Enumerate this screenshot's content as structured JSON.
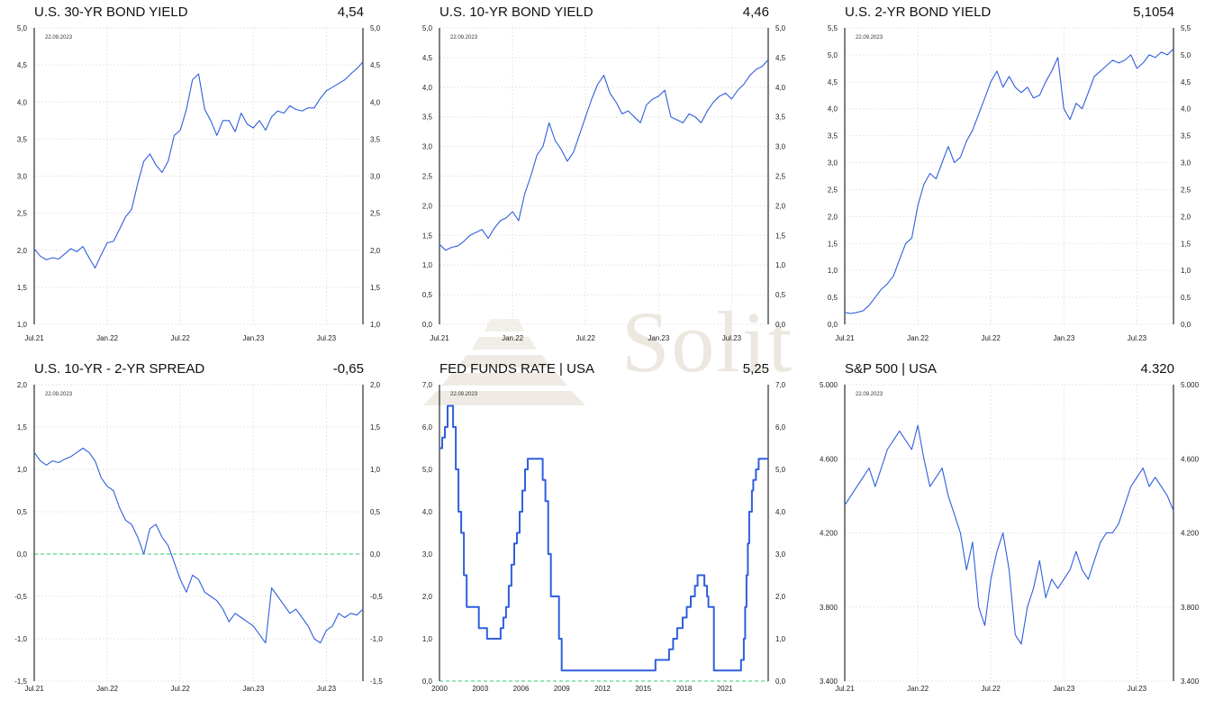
{
  "watermark": {
    "text": "Solit"
  },
  "colors": {
    "line": "#2f5fdc",
    "zero": "#2ecc71",
    "grid": "#e6e6e6",
    "axis": "#000000",
    "watermark": "#ece7df"
  },
  "chart_data": [
    {
      "id": "us30",
      "type": "line",
      "title": "U.S. 30-YR BOND YIELD",
      "last_value": "4,54",
      "date_label": "22.09.2023",
      "ylim": [
        1.0,
        5.0
      ],
      "yticks": [
        "1,0",
        "1,5",
        "2,0",
        "2,5",
        "3,0",
        "3,5",
        "4,0",
        "4,5",
        "5,0"
      ],
      "xlim": [
        0,
        27
      ],
      "xtick_labels": [
        "Jul.21",
        "Jan.22",
        "Jul.22",
        "Jan.23",
        "Jul.23"
      ],
      "xtick_positions": [
        0,
        6,
        12,
        18,
        24
      ],
      "grid": true,
      "zero_line": false,
      "step": false,
      "x": [
        0,
        0.5,
        1,
        1.5,
        2,
        2.5,
        3,
        3.5,
        4,
        4.5,
        5,
        5.5,
        6,
        6.5,
        7,
        7.5,
        8,
        8.5,
        9,
        9.5,
        10,
        10.5,
        11,
        11.5,
        12,
        12.5,
        13,
        13.5,
        14,
        14.5,
        15,
        15.5,
        16,
        16.5,
        17,
        17.5,
        18,
        18.5,
        19,
        19.5,
        20,
        20.5,
        21,
        21.5,
        22,
        22.5,
        23,
        23.5,
        24,
        24.5,
        25,
        25.5,
        26,
        26.5,
        27
      ],
      "y": [
        2.02,
        1.92,
        1.87,
        1.9,
        1.88,
        1.95,
        2.02,
        1.98,
        2.05,
        1.9,
        1.76,
        1.94,
        2.1,
        2.12,
        2.28,
        2.45,
        2.55,
        2.9,
        3.2,
        3.3,
        3.15,
        3.05,
        3.2,
        3.55,
        3.62,
        3.9,
        4.3,
        4.38,
        3.9,
        3.75,
        3.55,
        3.75,
        3.75,
        3.6,
        3.85,
        3.7,
        3.65,
        3.75,
        3.62,
        3.8,
        3.88,
        3.85,
        3.95,
        3.9,
        3.88,
        3.92,
        3.92,
        4.05,
        4.15,
        4.2,
        4.25,
        4.3,
        4.38,
        4.45,
        4.54
      ]
    },
    {
      "id": "us10",
      "type": "line",
      "title": "U.S. 10-YR BOND YIELD",
      "last_value": "4,46",
      "date_label": "22.09.2023",
      "ylim": [
        0.0,
        5.0
      ],
      "yticks": [
        "0,0",
        "0,5",
        "1,0",
        "1,5",
        "2,0",
        "2,5",
        "3,0",
        "3,5",
        "4,0",
        "4,5",
        "5,0"
      ],
      "xlim": [
        0,
        27
      ],
      "xtick_labels": [
        "Jul.21",
        "Jan.22",
        "Jul.22",
        "Jan.23",
        "Jul.23"
      ],
      "xtick_positions": [
        0,
        6,
        12,
        18,
        24
      ],
      "grid": true,
      "zero_line": false,
      "step": false,
      "x": [
        0,
        0.5,
        1,
        1.5,
        2,
        2.5,
        3,
        3.5,
        4,
        4.5,
        5,
        5.5,
        6,
        6.5,
        7,
        7.5,
        8,
        8.5,
        9,
        9.5,
        10,
        10.5,
        11,
        11.5,
        12,
        12.5,
        13,
        13.5,
        14,
        14.5,
        15,
        15.5,
        16,
        16.5,
        17,
        17.5,
        18,
        18.5,
        19,
        19.5,
        20,
        20.5,
        21,
        21.5,
        22,
        22.5,
        23,
        23.5,
        24,
        24.5,
        25,
        25.5,
        26,
        26.5,
        27
      ],
      "y": [
        1.35,
        1.25,
        1.3,
        1.32,
        1.4,
        1.5,
        1.55,
        1.6,
        1.45,
        1.62,
        1.75,
        1.8,
        1.9,
        1.75,
        2.2,
        2.5,
        2.85,
        3.0,
        3.4,
        3.1,
        2.95,
        2.75,
        2.9,
        3.2,
        3.5,
        3.8,
        4.05,
        4.2,
        3.9,
        3.75,
        3.55,
        3.6,
        3.5,
        3.4,
        3.7,
        3.8,
        3.85,
        3.95,
        3.5,
        3.45,
        3.4,
        3.55,
        3.5,
        3.4,
        3.6,
        3.75,
        3.85,
        3.9,
        3.8,
        3.95,
        4.05,
        4.2,
        4.3,
        4.35,
        4.46
      ]
    },
    {
      "id": "us2",
      "type": "line",
      "title": "U.S. 2-YR BOND YIELD",
      "last_value": "5,1054",
      "date_label": "22.09.2023",
      "ylim": [
        0.0,
        5.5
      ],
      "yticks": [
        "0,0",
        "0,5",
        "1,0",
        "1,5",
        "2,0",
        "2,5",
        "3,0",
        "3,5",
        "4,0",
        "4,5",
        "5,0",
        "5,5"
      ],
      "xlim": [
        0,
        27
      ],
      "xtick_labels": [
        "Jul.21",
        "Jan.22",
        "Jul.22",
        "Jan.23",
        "Jul.23"
      ],
      "xtick_positions": [
        0,
        6,
        12,
        18,
        24
      ],
      "grid": true,
      "zero_line": false,
      "step": false,
      "x": [
        0,
        0.5,
        1,
        1.5,
        2,
        2.5,
        3,
        3.5,
        4,
        4.5,
        5,
        5.5,
        6,
        6.5,
        7,
        7.5,
        8,
        8.5,
        9,
        9.5,
        10,
        10.5,
        11,
        11.5,
        12,
        12.5,
        13,
        13.5,
        14,
        14.5,
        15,
        15.5,
        16,
        16.5,
        17,
        17.5,
        18,
        18.5,
        19,
        19.5,
        20,
        20.5,
        21,
        21.5,
        22,
        22.5,
        23,
        23.5,
        24,
        24.5,
        25,
        25.5,
        26,
        26.5,
        27
      ],
      "y": [
        0.22,
        0.2,
        0.22,
        0.25,
        0.35,
        0.5,
        0.65,
        0.75,
        0.9,
        1.2,
        1.5,
        1.6,
        2.2,
        2.6,
        2.8,
        2.7,
        3.0,
        3.3,
        3.0,
        3.1,
        3.4,
        3.6,
        3.9,
        4.2,
        4.5,
        4.7,
        4.4,
        4.6,
        4.4,
        4.3,
        4.4,
        4.2,
        4.25,
        4.5,
        4.7,
        4.95,
        4.0,
        3.8,
        4.1,
        4.0,
        4.3,
        4.6,
        4.7,
        4.8,
        4.9,
        4.85,
        4.9,
        5.0,
        4.75,
        4.85,
        5.0,
        4.95,
        5.05,
        5.0,
        5.11
      ]
    },
    {
      "id": "spread",
      "type": "line",
      "title": "U.S. 10-YR - 2-YR SPREAD",
      "last_value": "-0,65",
      "date_label": "22.09.2023",
      "ylim": [
        -1.5,
        2.0
      ],
      "yticks": [
        "-1,5",
        "-1,0",
        "-0,5",
        "0,0",
        "0,5",
        "1,0",
        "1,5",
        "2,0"
      ],
      "xlim": [
        0,
        27
      ],
      "xtick_labels": [
        "Jul.21",
        "Jan.22",
        "Jul.22",
        "Jan.23",
        "Jul.23"
      ],
      "xtick_positions": [
        0,
        6,
        12,
        18,
        24
      ],
      "grid": true,
      "zero_line": true,
      "step": false,
      "x": [
        0,
        0.5,
        1,
        1.5,
        2,
        2.5,
        3,
        3.5,
        4,
        4.5,
        5,
        5.5,
        6,
        6.5,
        7,
        7.5,
        8,
        8.5,
        9,
        9.5,
        10,
        10.5,
        11,
        11.5,
        12,
        12.5,
        13,
        13.5,
        14,
        14.5,
        15,
        15.5,
        16,
        16.5,
        17,
        17.5,
        18,
        18.5,
        19,
        19.5,
        20,
        20.5,
        21,
        21.5,
        22,
        22.5,
        23,
        23.5,
        24,
        24.5,
        25,
        25.5,
        26,
        26.5,
        27
      ],
      "y": [
        1.2,
        1.1,
        1.05,
        1.1,
        1.08,
        1.12,
        1.15,
        1.2,
        1.25,
        1.2,
        1.1,
        0.9,
        0.8,
        0.75,
        0.55,
        0.4,
        0.35,
        0.2,
        0.0,
        0.3,
        0.35,
        0.2,
        0.1,
        -0.1,
        -0.3,
        -0.45,
        -0.25,
        -0.3,
        -0.45,
        -0.5,
        -0.55,
        -0.65,
        -0.8,
        -0.7,
        -0.75,
        -0.8,
        -0.85,
        -0.95,
        -1.05,
        -0.4,
        -0.5,
        -0.6,
        -0.7,
        -0.65,
        -0.75,
        -0.85,
        -1.0,
        -1.05,
        -0.9,
        -0.85,
        -0.7,
        -0.75,
        -0.7,
        -0.72,
        -0.65
      ]
    },
    {
      "id": "fed",
      "type": "line",
      "title": "FED FUNDS RATE | USA",
      "last_value": "5,25",
      "date_label": "22.09.2023",
      "ylim": [
        0.0,
        7.0
      ],
      "yticks": [
        "0,0",
        "1,0",
        "2,0",
        "3,0",
        "4,0",
        "5,0",
        "6,0",
        "7,0"
      ],
      "xlim": [
        2000,
        2024.2
      ],
      "xtick_labels": [
        "2000",
        "2003",
        "2006",
        "2009",
        "2012",
        "2015",
        "2018",
        "2021"
      ],
      "xtick_positions": [
        2000,
        2003,
        2006,
        2009,
        2012,
        2015,
        2018,
        2021
      ],
      "grid": false,
      "zero_line": true,
      "step": true,
      "x": [
        2000,
        2000.2,
        2000.4,
        2000.6,
        2001.0,
        2001.2,
        2001.4,
        2001.6,
        2001.8,
        2002.0,
        2002.9,
        2003.5,
        2004.5,
        2004.7,
        2004.9,
        2005.1,
        2005.3,
        2005.5,
        2005.7,
        2005.9,
        2006.1,
        2006.3,
        2006.5,
        2007.6,
        2007.8,
        2008.0,
        2008.2,
        2008.4,
        2008.8,
        2009.0,
        2015.9,
        2016.9,
        2017.2,
        2017.5,
        2017.9,
        2018.2,
        2018.5,
        2018.8,
        2019.0,
        2019.5,
        2019.7,
        2019.8,
        2020.2,
        2022.2,
        2022.4,
        2022.5,
        2022.6,
        2022.7,
        2022.8,
        2023.0,
        2023.1,
        2023.3,
        2023.5,
        2024.2
      ],
      "y": [
        5.5,
        5.75,
        6.0,
        6.5,
        6.0,
        5.0,
        4.0,
        3.5,
        2.5,
        1.75,
        1.25,
        1.0,
        1.25,
        1.5,
        1.75,
        2.25,
        2.75,
        3.25,
        3.5,
        4.0,
        4.5,
        5.0,
        5.25,
        4.75,
        4.25,
        3.0,
        2.0,
        2.0,
        1.0,
        0.25,
        0.5,
        0.75,
        1.0,
        1.25,
        1.5,
        1.75,
        2.0,
        2.25,
        2.5,
        2.25,
        2.0,
        1.75,
        0.25,
        0.5,
        1.0,
        1.75,
        2.5,
        3.25,
        4.0,
        4.5,
        4.75,
        5.0,
        5.25,
        5.25
      ]
    },
    {
      "id": "sp500",
      "type": "line",
      "title": "S&P 500 | USA",
      "last_value": "4.320",
      "date_label": "22.09.2023",
      "ylim": [
        3400,
        5000
      ],
      "yticks": [
        "3.400",
        "3.800",
        "4.200",
        "4.600",
        "5.000"
      ],
      "ytick_values": [
        3400,
        3800,
        4200,
        4600,
        5000
      ],
      "xlim": [
        0,
        27
      ],
      "xtick_labels": [
        "Jul.21",
        "Jan.22",
        "Jul.22",
        "Jan.23",
        "Jul.23"
      ],
      "xtick_positions": [
        0,
        6,
        12,
        18,
        24
      ],
      "grid": true,
      "zero_line": false,
      "step": false,
      "x": [
        0,
        0.5,
        1,
        1.5,
        2,
        2.5,
        3,
        3.5,
        4,
        4.5,
        5,
        5.5,
        6,
        6.5,
        7,
        7.5,
        8,
        8.5,
        9,
        9.5,
        10,
        10.5,
        11,
        11.5,
        12,
        12.5,
        13,
        13.5,
        14,
        14.5,
        15,
        15.5,
        16,
        16.5,
        17,
        17.5,
        18,
        18.5,
        19,
        19.5,
        20,
        20.5,
        21,
        21.5,
        22,
        22.5,
        23,
        23.5,
        24,
        24.5,
        25,
        25.5,
        26,
        26.5,
        27
      ],
      "y": [
        4350,
        4400,
        4450,
        4500,
        4550,
        4450,
        4550,
        4650,
        4700,
        4750,
        4700,
        4650,
        4780,
        4600,
        4450,
        4500,
        4550,
        4400,
        4300,
        4200,
        4000,
        4150,
        3800,
        3700,
        3950,
        4100,
        4200,
        4000,
        3650,
        3600,
        3800,
        3900,
        4050,
        3850,
        3950,
        3900,
        3950,
        4000,
        4100,
        4000,
        3950,
        4050,
        4150,
        4200,
        4200,
        4250,
        4350,
        4450,
        4500,
        4550,
        4450,
        4500,
        4450,
        4400,
        4320
      ]
    }
  ]
}
